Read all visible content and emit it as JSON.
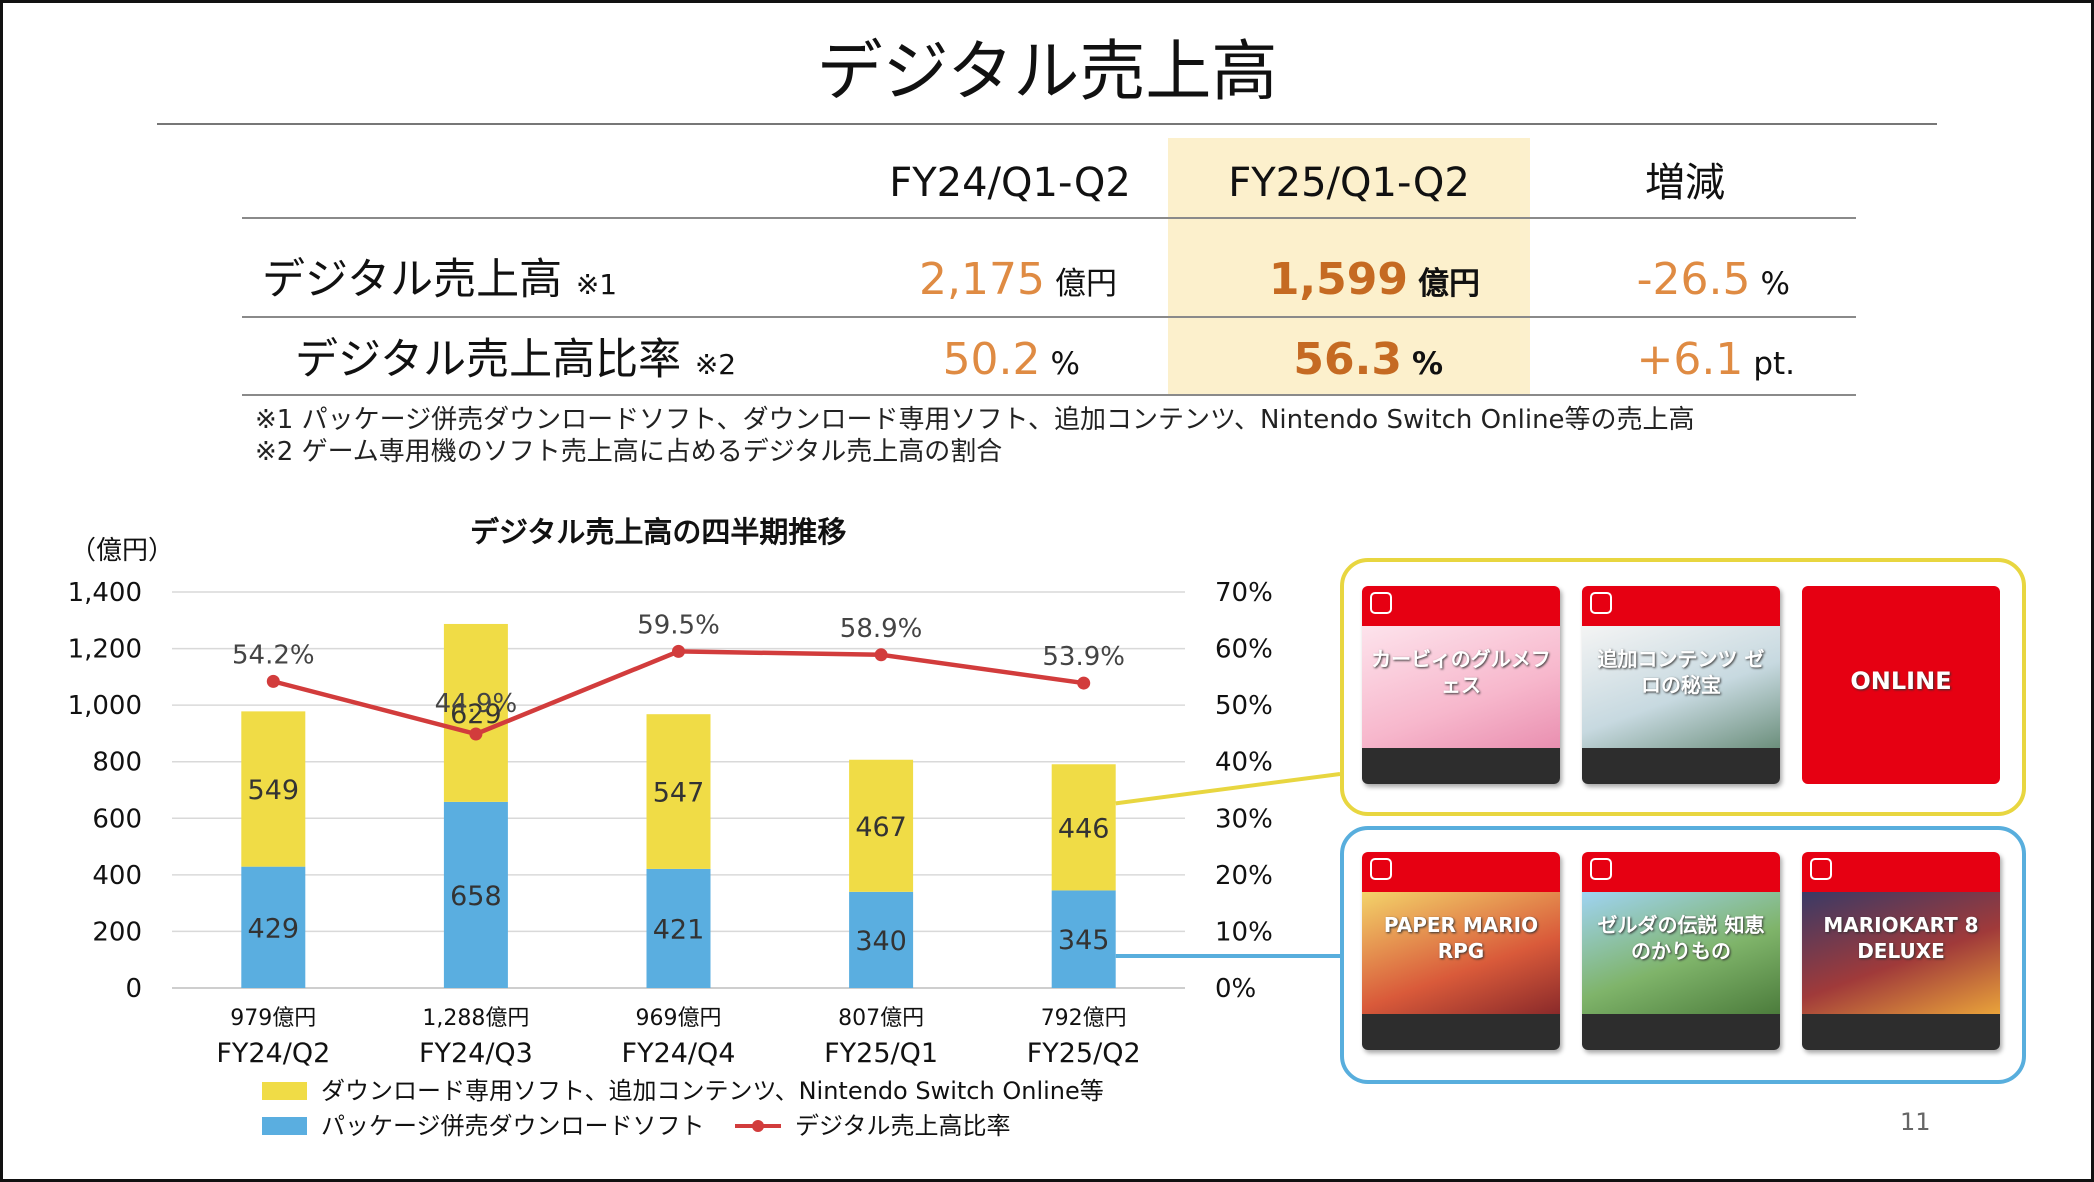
{
  "title": "デジタル売上高",
  "table": {
    "col_headers": [
      "FY24/Q1-Q2",
      "FY25/Q1-Q2",
      "増減"
    ],
    "rows": [
      {
        "label": "デジタル売上高",
        "note": "※1",
        "fy24": {
          "value": "2,175",
          "unit": "億円"
        },
        "fy25": {
          "value": "1,599",
          "unit": "億円"
        },
        "change": {
          "value": "-26.5",
          "unit": "%"
        }
      },
      {
        "label": "デジタル売上高比率",
        "note": "※2",
        "fy24": {
          "value": "50.2",
          "unit": "%"
        },
        "fy25": {
          "value": "56.3",
          "unit": "%"
        },
        "change": {
          "value": "+6.1",
          "unit": "pt."
        }
      }
    ]
  },
  "footnotes": [
    "※1 パッケージ併売ダウンロードソフト、ダウンロード専用ソフト、追加コンテンツ、Nintendo Switch Online等の売上高",
    "※2 ゲーム専用機のソフト売上高に占めるデジタル売上高の割合"
  ],
  "chart_data": {
    "type": "bar",
    "title": "デジタル売上高の四半期推移",
    "ylabel": "（億円）",
    "ylim": [
      0,
      1400
    ],
    "y_ticks": [
      "0",
      "200",
      "400",
      "600",
      "800",
      "1,000",
      "1,200",
      "1,400"
    ],
    "y2lim": [
      0,
      70
    ],
    "y2_ticks": [
      "0%",
      "10%",
      "20%",
      "30%",
      "40%",
      "50%",
      "60%",
      "70%"
    ],
    "grid": true,
    "stacked": true,
    "categories": [
      "FY24/Q2",
      "FY24/Q3",
      "FY24/Q4",
      "FY25/Q1",
      "FY25/Q2"
    ],
    "totals": [
      "979億円",
      "1,288億円",
      "969億円",
      "807億円",
      "792億円"
    ],
    "series": [
      {
        "name": "パッケージ併売ダウンロードソフト",
        "type": "bar",
        "color": "#5aaee0",
        "values": [
          429,
          658,
          421,
          340,
          345
        ]
      },
      {
        "name": "ダウンロード専用ソフト、追加コンテンツ、Nintendo Switch Online等",
        "type": "bar",
        "color": "#f0dc46",
        "values": [
          549,
          629,
          547,
          467,
          446
        ]
      },
      {
        "name": "デジタル売上高比率",
        "type": "line",
        "axis": "right",
        "color": "#d23c3c",
        "values": [
          54.2,
          44.9,
          59.5,
          58.9,
          53.9
        ]
      }
    ],
    "line_labels": [
      "54.2%",
      "44.9%",
      "59.5%",
      "58.9%",
      "53.9%"
    ],
    "legend_position": "bottom-left"
  },
  "products": {
    "digital_only_color": "#e8d640",
    "package_color": "#58aedd",
    "cards_top": [
      "カービィのグルメフェス",
      "追加コンテンツ ゼロの秘宝",
      "ONLINE"
    ],
    "cards_bottom": [
      "PAPER MARIO RPG",
      "ゼルダの伝説 知恵のかりもの",
      "MARIOKART 8 DELUXE"
    ]
  },
  "page_number": "11"
}
